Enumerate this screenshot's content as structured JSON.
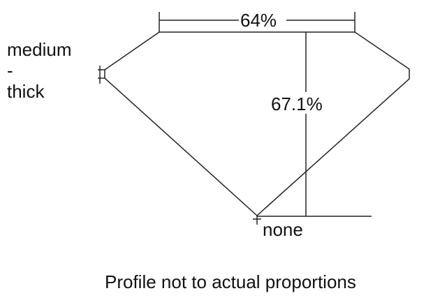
{
  "girdle_label": {
    "line1": "medium",
    "line2": "-",
    "line3": "thick"
  },
  "table_percent": "64%",
  "depth_percent": "67.1%",
  "culet_label": "none",
  "caption": "Profile not to actual proportions"
}
